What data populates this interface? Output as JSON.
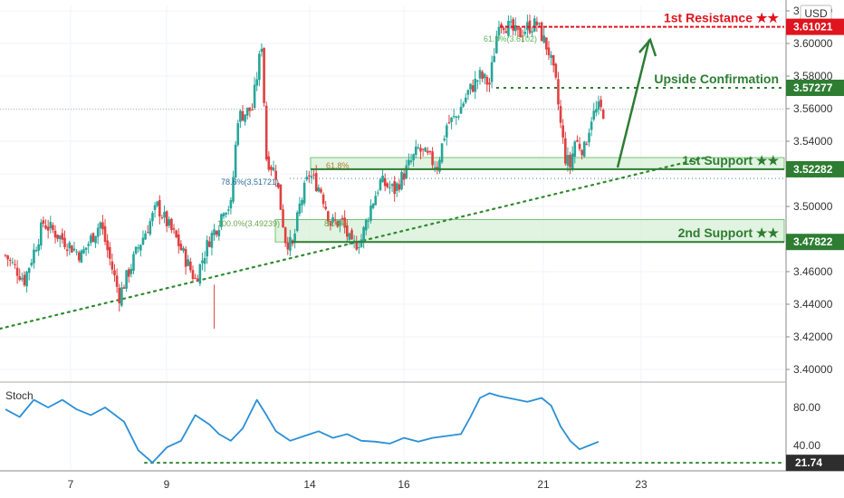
{
  "currency": "USD",
  "colors": {
    "up": "#26a69a",
    "down": "#e04040",
    "resistance": "#e0141e",
    "support": "#2e7d32",
    "zone_fill": "#d7efd7",
    "dotted_line": "#2e8b2e",
    "stoch_line": "#2a8fd6",
    "fib": "#8a9a3a"
  },
  "chart_data": [
    {
      "type": "candlestick",
      "title": "",
      "y_axis": {
        "ticks": [
          "3.62000",
          "3.60000",
          "3.58000",
          "3.56000",
          "3.54000",
          "3.52000",
          "3.50000",
          "3.48000",
          "3.46000",
          "3.44000",
          "3.42000",
          "3.40000"
        ],
        "range": [
          3.395,
          3.625
        ]
      },
      "x_axis": {
        "ticks": [
          "7",
          "9",
          "14",
          "16",
          "21",
          "23"
        ]
      },
      "anchor_closes": [
        [
          0,
          3.47
        ],
        [
          8,
          3.455
        ],
        [
          16,
          3.49
        ],
        [
          24,
          3.48
        ],
        [
          32,
          3.47
        ],
        [
          40,
          3.49
        ],
        [
          48,
          3.445
        ],
        [
          56,
          3.475
        ],
        [
          64,
          3.5
        ],
        [
          72,
          3.48
        ],
        [
          80,
          3.455
        ],
        [
          86,
          3.48
        ],
        [
          90,
          3.49
        ],
        [
          92,
          3.5
        ],
        [
          95,
          3.5
        ],
        [
          98,
          3.555
        ],
        [
          104,
          3.56
        ],
        [
          108,
          3.6
        ],
        [
          110,
          3.53
        ],
        [
          114,
          3.52
        ],
        [
          118,
          3.48
        ],
        [
          121,
          3.475
        ],
        [
          124,
          3.5
        ],
        [
          128,
          3.52
        ],
        [
          133,
          3.51
        ],
        [
          137,
          3.49
        ],
        [
          142,
          3.49
        ],
        [
          146,
          3.475
        ],
        [
          150,
          3.48
        ],
        [
          154,
          3.5
        ],
        [
          158,
          3.515
        ],
        [
          164,
          3.51
        ],
        [
          168,
          3.52
        ],
        [
          174,
          3.535
        ],
        [
          178,
          3.53
        ],
        [
          182,
          3.525
        ],
        [
          186,
          3.55
        ],
        [
          190,
          3.555
        ],
        [
          195,
          3.57
        ],
        [
          200,
          3.58
        ],
        [
          204,
          3.575
        ],
        [
          208,
          3.615
        ],
        [
          212,
          3.61
        ],
        [
          216,
          3.605
        ],
        [
          220,
          3.61
        ],
        [
          224,
          3.612
        ],
        [
          226,
          3.605
        ],
        [
          229,
          3.595
        ],
        [
          232,
          3.575
        ],
        [
          234,
          3.55
        ],
        [
          236,
          3.53
        ],
        [
          238,
          3.525
        ],
        [
          240,
          3.54
        ],
        [
          244,
          3.535
        ],
        [
          247,
          3.555
        ],
        [
          250,
          3.56
        ],
        [
          252,
          3.558
        ]
      ],
      "levels": [
        {
          "label": "1st Resistance ★★",
          "price": "3.61021",
          "value": 3.61021,
          "kind": "resistance"
        },
        {
          "label": "Upside Confirmation",
          "price": "3.57277",
          "value": 3.57277,
          "kind": "confirmation"
        },
        {
          "label": "1st Support ★★",
          "price": "3.52282",
          "value": 3.52282,
          "kind": "support"
        },
        {
          "label": "2nd Support ★★",
          "price": "3.47822",
          "value": 3.47822,
          "kind": "support"
        }
      ],
      "zones": [
        {
          "from": 3.52282,
          "to": 3.53
        },
        {
          "from": 3.47822,
          "to": 3.492
        }
      ],
      "fib_labels": [
        "61.8%(3.6102)",
        "78.6%(3.51721)",
        "61.8%",
        "100.0%(3.49239)",
        "88.6%"
      ],
      "trendline": {
        "start": {
          "bar": 0,
          "value": 3.425
        },
        "end": {
          "bar": 250,
          "value": 3.53
        }
      }
    },
    {
      "type": "line",
      "title": "Stoch",
      "y_axis": {
        "ticks": [
          "80.00",
          "40.00"
        ],
        "range": [
          10,
          105
        ]
      },
      "level": {
        "value": 21.74,
        "label": "21.74"
      },
      "series": [
        {
          "name": "",
          "anchors": [
            [
              0,
              78
            ],
            [
              6,
              70
            ],
            [
              12,
              88
            ],
            [
              18,
              80
            ],
            [
              24,
              88
            ],
            [
              30,
              78
            ],
            [
              36,
              72
            ],
            [
              42,
              80
            ],
            [
              50,
              65
            ],
            [
              56,
              35
            ],
            [
              62,
              22
            ],
            [
              68,
              38
            ],
            [
              74,
              45
            ],
            [
              80,
              72
            ],
            [
              86,
              62
            ],
            [
              90,
              52
            ],
            [
              95,
              45
            ],
            [
              100,
              58
            ],
            [
              106,
              88
            ],
            [
              110,
              72
            ],
            [
              114,
              55
            ],
            [
              120,
              45
            ],
            [
              126,
              50
            ],
            [
              132,
              55
            ],
            [
              138,
              48
            ],
            [
              144,
              52
            ],
            [
              150,
              45
            ],
            [
              156,
              44
            ],
            [
              162,
              42
            ],
            [
              168,
              48
            ],
            [
              174,
              44
            ],
            [
              180,
              48
            ],
            [
              186,
              50
            ],
            [
              192,
              52
            ],
            [
              196,
              70
            ],
            [
              200,
              90
            ],
            [
              204,
              95
            ],
            [
              208,
              92
            ],
            [
              212,
              90
            ],
            [
              216,
              88
            ],
            [
              220,
              86
            ],
            [
              226,
              90
            ],
            [
              230,
              82
            ],
            [
              234,
              60
            ],
            [
              238,
              45
            ],
            [
              242,
              36
            ],
            [
              246,
              40
            ],
            [
              250,
              44
            ]
          ]
        }
      ]
    }
  ]
}
